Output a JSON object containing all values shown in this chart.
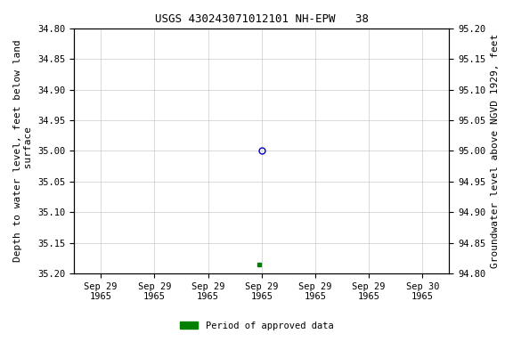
{
  "title": "USGS 430243071012101 NH-EPW   38",
  "ylabel_left": "Depth to water level, feet below land\n surface",
  "ylabel_right": "Groundwater level above NGVD 1929, feet",
  "ylim_left": [
    35.2,
    34.8
  ],
  "ylim_right": [
    94.8,
    95.2
  ],
  "yticks_left": [
    34.8,
    34.85,
    34.9,
    34.95,
    35.0,
    35.05,
    35.1,
    35.15,
    35.2
  ],
  "yticks_right": [
    95.2,
    95.15,
    95.1,
    95.05,
    95.0,
    94.95,
    94.9,
    94.85,
    94.8
  ],
  "data_point_y": 35.0,
  "data_point_color": "#0000cc",
  "approved_point_y": 35.185,
  "approved_point_color": "#008000",
  "legend_label": "Period of approved data",
  "legend_color": "#008000",
  "background_color": "#ffffff",
  "grid_color": "#cccccc",
  "font_family": "monospace",
  "title_fontsize": 9,
  "tick_fontsize": 7.5,
  "label_fontsize": 8,
  "x_num_ticks": 7,
  "x_data_tick_index": 3
}
